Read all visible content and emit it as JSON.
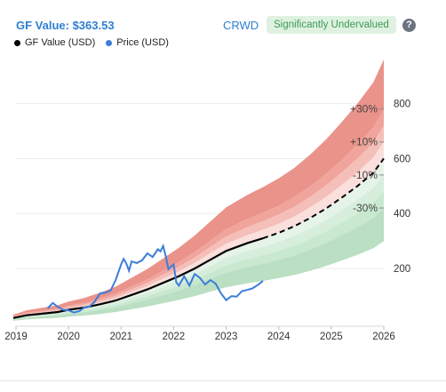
{
  "header": {
    "gf_value_label": "GF Value: $363.53",
    "ticker": "CRWD",
    "valuation_badge": "Significantly Undervalued",
    "help_icon": "question-icon",
    "help_glyph": "?"
  },
  "legend": [
    {
      "label": "GF Value (USD)",
      "color": "#000000"
    },
    {
      "label": "Price (USD)",
      "color": "#3b7dd8"
    }
  ],
  "colors": {
    "gf_line": "#000000",
    "price_line": "#3b7dd8",
    "band_red": "#e9938a",
    "band_green": "#b8dfc1",
    "accent": "#2f7fd1"
  },
  "chart_data": {
    "type": "line",
    "xlabel": "",
    "ylabel": "",
    "x_ticks": [
      "2019",
      "2020",
      "2021",
      "2022",
      "2023",
      "2024",
      "2025",
      "2026"
    ],
    "y_ticks": [
      200,
      400,
      600,
      800
    ],
    "xlim": [
      2019.0,
      2026.0
    ],
    "ylim": [
      0,
      950
    ],
    "grid": true,
    "legend_position": "top-left",
    "band_labels": [
      "+30%",
      "+10%",
      "-10%",
      "-30%"
    ],
    "gf_value_history": {
      "x": [
        2018.95,
        2019.2,
        2019.5,
        2019.8,
        2020.0,
        2020.3,
        2020.6,
        2020.9,
        2021.2,
        2021.5,
        2021.8,
        2022.1,
        2022.4,
        2022.7,
        2023.0,
        2023.4,
        2023.7
      ],
      "y": [
        20,
        30,
        36,
        42,
        50,
        58,
        70,
        84,
        104,
        124,
        148,
        172,
        200,
        232,
        264,
        292,
        310
      ]
    },
    "gf_value_projection": {
      "x": [
        2023.7,
        2024.0,
        2024.3,
        2024.6,
        2024.9,
        2025.2,
        2025.5,
        2025.8,
        2026.0
      ],
      "y": [
        310,
        330,
        354,
        384,
        418,
        458,
        500,
        548,
        600
      ]
    },
    "price": {
      "x": [
        2019.6,
        2019.7,
        2019.8,
        2019.9,
        2020.0,
        2020.1,
        2020.2,
        2020.3,
        2020.4,
        2020.5,
        2020.6,
        2020.7,
        2020.8,
        2020.9,
        2021.0,
        2021.05,
        2021.1,
        2021.15,
        2021.2,
        2021.3,
        2021.4,
        2021.5,
        2021.6,
        2021.7,
        2021.75,
        2021.8,
        2021.85,
        2021.9,
        2022.0,
        2022.05,
        2022.1,
        2022.2,
        2022.3,
        2022.4,
        2022.5,
        2022.6,
        2022.7,
        2022.8,
        2022.9,
        2023.0,
        2023.1,
        2023.2,
        2023.3,
        2023.4,
        2023.5,
        2023.6,
        2023.7
      ],
      "y": [
        55,
        75,
        60,
        50,
        48,
        40,
        45,
        58,
        62,
        80,
        110,
        112,
        120,
        160,
        215,
        235,
        218,
        192,
        226,
        220,
        230,
        255,
        242,
        270,
        262,
        282,
        245,
        198,
        215,
        150,
        138,
        172,
        138,
        180,
        166,
        142,
        158,
        145,
        110,
        85,
        100,
        98,
        118,
        122,
        128,
        140,
        155
      ]
    }
  }
}
